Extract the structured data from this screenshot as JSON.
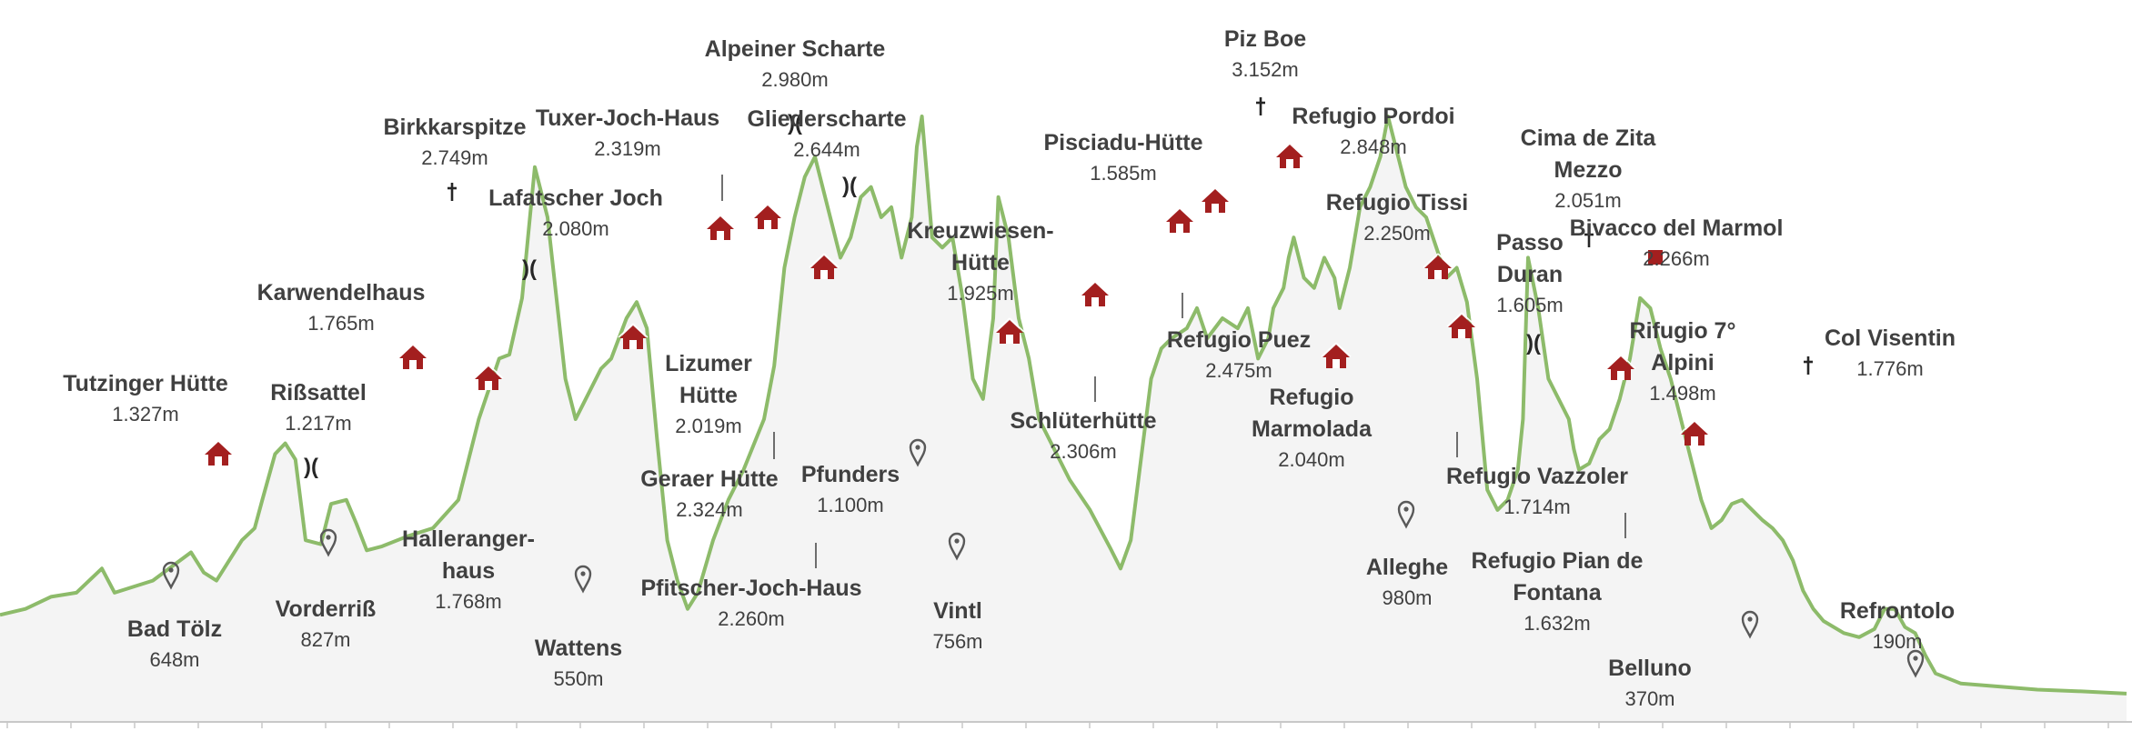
{
  "chart_data": {
    "type": "area",
    "title": "",
    "xlabel": "",
    "ylabel": "",
    "ylim": [
      0,
      3400
    ],
    "grid": false,
    "legend": "none",
    "colors": {
      "line": "#8dbb6a",
      "fill": "#f4f4f4",
      "hut": "#a31f1f",
      "pin": "#595959",
      "text": "#404040"
    },
    "profile": [
      [
        0,
        530
      ],
      [
        10,
        560
      ],
      [
        20,
        620
      ],
      [
        30,
        640
      ],
      [
        40,
        760
      ],
      [
        45,
        640
      ],
      [
        60,
        700
      ],
      [
        75,
        840
      ],
      [
        80,
        740
      ],
      [
        85,
        700
      ],
      [
        95,
        900
      ],
      [
        100,
        960
      ],
      [
        103,
        1100
      ],
      [
        108,
        1327
      ],
      [
        112,
        1380
      ],
      [
        116,
        1300
      ],
      [
        120,
        900
      ],
      [
        126,
        880
      ],
      [
        130,
        1080
      ],
      [
        136,
        1100
      ],
      [
        140,
        980
      ],
      [
        144,
        850
      ],
      [
        150,
        870
      ],
      [
        160,
        920
      ],
      [
        170,
        960
      ],
      [
        180,
        1100
      ],
      [
        184,
        1300
      ],
      [
        188,
        1500
      ],
      [
        192,
        1650
      ],
      [
        196,
        1800
      ],
      [
        200,
        1820
      ],
      [
        205,
        2100
      ],
      [
        210,
        2749
      ],
      [
        215,
        2500
      ],
      [
        222,
        1700
      ],
      [
        226,
        1500
      ],
      [
        230,
        1600
      ],
      [
        236,
        1750
      ],
      [
        240,
        1800
      ],
      [
        246,
        2000
      ],
      [
        250,
        2080
      ],
      [
        254,
        1950
      ],
      [
        258,
        1400
      ],
      [
        262,
        900
      ],
      [
        266,
        700
      ],
      [
        270,
        560
      ],
      [
        274,
        640
      ],
      [
        280,
        900
      ],
      [
        286,
        1100
      ],
      [
        292,
        1250
      ],
      [
        300,
        1500
      ],
      [
        304,
        1765
      ],
      [
        308,
        2250
      ],
      [
        312,
        2500
      ],
      [
        316,
        2700
      ],
      [
        320,
        2800
      ],
      [
        322,
        2700
      ],
      [
        326,
        2500
      ],
      [
        330,
        2300
      ],
      [
        334,
        2400
      ],
      [
        338,
        2600
      ],
      [
        342,
        2650
      ],
      [
        346,
        2500
      ],
      [
        350,
        2550
      ],
      [
        354,
        2300
      ],
      [
        358,
        2500
      ],
      [
        360,
        2850
      ],
      [
        362,
        3000
      ],
      [
        364,
        2700
      ],
      [
        366,
        2400
      ],
      [
        370,
        2350
      ],
      [
        374,
        2400
      ],
      [
        378,
        2100
      ],
      [
        382,
        1700
      ],
      [
        386,
        1600
      ],
      [
        388,
        1800
      ],
      [
        390,
        2000
      ],
      [
        392,
        2600
      ],
      [
        396,
        2400
      ],
      [
        400,
        2000
      ],
      [
        404,
        1800
      ],
      [
        408,
        1500
      ],
      [
        414,
        1350
      ],
      [
        420,
        1200
      ],
      [
        428,
        1050
      ],
      [
        436,
        860
      ],
      [
        440,
        760
      ],
      [
        444,
        900
      ],
      [
        448,
        1300
      ],
      [
        452,
        1700
      ],
      [
        456,
        1850
      ],
      [
        460,
        1900
      ],
      [
        466,
        1950
      ],
      [
        470,
        2050
      ],
      [
        474,
        1900
      ],
      [
        480,
        2000
      ],
      [
        486,
        1950
      ],
      [
        490,
        2050
      ],
      [
        494,
        1800
      ],
      [
        498,
        1900
      ],
      [
        500,
        2050
      ],
      [
        504,
        2150
      ],
      [
        506,
        2300
      ],
      [
        508,
        2400
      ],
      [
        512,
        2200
      ],
      [
        516,
        2150
      ],
      [
        520,
        2300
      ],
      [
        524,
        2200
      ],
      [
        526,
        2050
      ],
      [
        530,
        2250
      ],
      [
        534,
        2550
      ],
      [
        538,
        2650
      ],
      [
        542,
        2800
      ],
      [
        545,
        3000
      ],
      [
        548,
        2850
      ],
      [
        552,
        2650
      ],
      [
        556,
        2550
      ],
      [
        560,
        2500
      ],
      [
        564,
        2350
      ],
      [
        568,
        2200
      ],
      [
        572,
        2250
      ],
      [
        576,
        2080
      ],
      [
        580,
        1700
      ],
      [
        584,
        1150
      ],
      [
        588,
        1050
      ],
      [
        592,
        1100
      ],
      [
        596,
        1250
      ],
      [
        598,
        1500
      ],
      [
        600,
        2300
      ],
      [
        604,
        2050
      ],
      [
        608,
        1700
      ],
      [
        612,
        1600
      ],
      [
        616,
        1500
      ],
      [
        618,
        1350
      ],
      [
        620,
        1250
      ],
      [
        624,
        1280
      ],
      [
        628,
        1400
      ],
      [
        632,
        1450
      ],
      [
        636,
        1600
      ],
      [
        640,
        1800
      ],
      [
        644,
        2100
      ],
      [
        648,
        2050
      ],
      [
        652,
        1850
      ],
      [
        656,
        1700
      ],
      [
        660,
        1500
      ],
      [
        664,
        1300
      ],
      [
        668,
        1100
      ],
      [
        672,
        960
      ],
      [
        676,
        1000
      ],
      [
        680,
        1080
      ],
      [
        684,
        1100
      ],
      [
        688,
        1050
      ],
      [
        692,
        1000
      ],
      [
        696,
        960
      ],
      [
        700,
        900
      ],
      [
        704,
        800
      ],
      [
        708,
        650
      ],
      [
        712,
        560
      ],
      [
        716,
        500
      ],
      [
        724,
        440
      ],
      [
        730,
        420
      ],
      [
        736,
        460
      ],
      [
        740,
        560
      ],
      [
        744,
        560
      ],
      [
        748,
        470
      ],
      [
        752,
        440
      ],
      [
        756,
        330
      ],
      [
        760,
        240
      ],
      [
        770,
        190
      ],
      [
        800,
        160
      ],
      [
        820,
        150
      ],
      [
        835,
        140
      ]
    ],
    "points": [
      {
        "name": "Tutzinger Hütte",
        "elevation": "1.327m",
        "symbol": "hut"
      },
      {
        "name": "Bad Tölz",
        "elevation": "648m",
        "symbol": "pin"
      },
      {
        "name": "Rißsattel",
        "elevation": "1.217m",
        "symbol": "pass"
      },
      {
        "name": "Vorderriß",
        "elevation": "827m",
        "symbol": "pin"
      },
      {
        "name": "Karwendelhaus",
        "elevation": "1.765m",
        "symbol": "hut"
      },
      {
        "name": "Birkkarspitze",
        "elevation": "2.749m",
        "symbol": "summit"
      },
      {
        "name": "Halleranger-",
        "name2": "haus",
        "elevation": "1.768m",
        "symbol": "hut"
      },
      {
        "name": "Lafatscher Joch",
        "elevation": "2.080m",
        "symbol": "pass"
      },
      {
        "name": "Wattens",
        "elevation": "550m",
        "symbol": "pin"
      },
      {
        "name": "Tuxer-Joch-Haus",
        "elevation": "2.319m",
        "symbol": "hut"
      },
      {
        "name": "Lizumer",
        "name2": "Hütte",
        "elevation": "2.019m",
        "symbol": "hut"
      },
      {
        "name": "Geraer Hütte",
        "elevation": "2.324m",
        "symbol": "hut"
      },
      {
        "name": "Alpeiner Scharte",
        "elevation": "2.980m",
        "symbol": "pass"
      },
      {
        "name": "Pfitscher-Joch-Haus",
        "elevation": "2.260m",
        "symbol": "hut"
      },
      {
        "name": "Gliederscharte",
        "elevation": "2.644m",
        "symbol": "pass"
      },
      {
        "name": "Pfunders",
        "elevation": "1.100m",
        "symbol": "pin"
      },
      {
        "name": "Vintl",
        "elevation": "756m",
        "symbol": "pin"
      },
      {
        "name": "Kreuzwiesen-",
        "name2": "Hütte",
        "elevation": "1.925m",
        "symbol": "hut"
      },
      {
        "name": "Schlüterhütte",
        "elevation": "2.306m",
        "symbol": "hut"
      },
      {
        "name": "Pisciadu-Hütte",
        "elevation": "1.585m",
        "symbol": "hut"
      },
      {
        "name": "Refugio Puez",
        "elevation": "2.475m",
        "symbol": "hut"
      },
      {
        "name": "Piz Boe",
        "elevation": "3.152m",
        "symbol": "summit"
      },
      {
        "name": "Refugio Pordoi",
        "elevation": "2.848m",
        "symbol": "hut"
      },
      {
        "name": "Refugio",
        "name2": "Marmolada",
        "elevation": "2.040m",
        "symbol": "hut"
      },
      {
        "name": "Refugio Tissi",
        "elevation": "2.250m",
        "symbol": "hut"
      },
      {
        "name": "Alleghe",
        "elevation": "980m",
        "symbol": "pin"
      },
      {
        "name": "Refugio Vazzoler",
        "elevation": "1.714m",
        "symbol": "hut"
      },
      {
        "name": "Passo",
        "name2": "Duran",
        "elevation": "1.605m",
        "symbol": "pass"
      },
      {
        "name": "Cima de Zita",
        "name2": "Mezzo",
        "elevation": "2.051m",
        "symbol": "summit"
      },
      {
        "name": "Refugio Pian de",
        "name2": "Fontana",
        "elevation": "1.632m",
        "symbol": "hut"
      },
      {
        "name": "Bivacco del Marmol",
        "elevation": "2.266m",
        "symbol": "bivouac"
      },
      {
        "name": "Rifugio 7°",
        "name2": "Alpini",
        "elevation": "1.498m",
        "symbol": "hut"
      },
      {
        "name": "Belluno",
        "elevation": "370m",
        "symbol": "pin"
      },
      {
        "name": "Col Visentin",
        "elevation": "1.776m",
        "symbol": "summit"
      },
      {
        "name": "Refrontolo",
        "elevation": "190m",
        "symbol": "pin"
      }
    ]
  }
}
